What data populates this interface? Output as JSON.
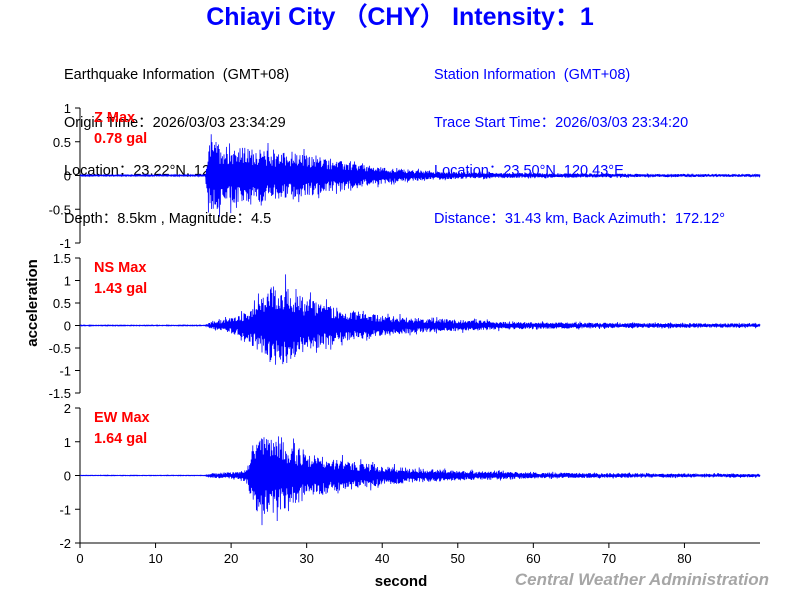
{
  "header": {
    "title": "Chiayi City （CHY） Intensity：1"
  },
  "earthquake_info": {
    "heading": "Earthquake Information  (GMT+08)",
    "origin_time": "Origin Time：2026/03/03 23:34:29",
    "location": "Location：23.22°N, 120.47°E",
    "depth_magnitude": "Depth：8.5km , Magnitude：4.5"
  },
  "station_info": {
    "heading": "Station Information  (GMT+08)",
    "trace_start": "Trace Start Time：2026/03/03 23:34:20",
    "location": "Location：23.50°N, 120.43°E",
    "distance": "Distance：31.43 km, Back Azimuth：172.12°"
  },
  "credit": "Central Weather Administration",
  "colors": {
    "trace": "#0000ff",
    "title": "#0000ff",
    "station_text": "#0000ff",
    "max_label": "#ff0000",
    "axis": "#000000",
    "credit": "#a6a6a6"
  },
  "chart_data": {
    "type": "line",
    "xlabel": "second",
    "ylabel": "acceleration",
    "xlim": [
      0,
      90
    ],
    "x_ticks": [
      0,
      10,
      20,
      30,
      40,
      50,
      60,
      70,
      80
    ],
    "grid": false,
    "panels": [
      {
        "component": "Z",
        "max_label": "Z Max",
        "max_value": "0.78 gal",
        "ylim": [
          -1,
          1
        ],
        "y_ticks": [
          1,
          0.5,
          0,
          -0.5,
          -1
        ],
        "y_tick_labels": [
          "1",
          "0.5",
          "0",
          "-0.5",
          "-1"
        ],
        "p_arrival": 16.8,
        "envelope": [
          [
            0,
            0.012
          ],
          [
            16.6,
            0.012
          ],
          [
            16.9,
            0.55
          ],
          [
            17.5,
            0.72
          ],
          [
            19,
            0.62
          ],
          [
            22,
            0.55
          ],
          [
            25,
            0.5
          ],
          [
            28,
            0.45
          ],
          [
            31,
            0.38
          ],
          [
            34,
            0.3
          ],
          [
            38,
            0.2
          ],
          [
            42,
            0.13
          ],
          [
            46,
            0.09
          ],
          [
            50,
            0.07
          ],
          [
            55,
            0.055
          ],
          [
            60,
            0.045
          ],
          [
            70,
            0.035
          ],
          [
            80,
            0.03
          ],
          [
            90,
            0.028
          ]
        ]
      },
      {
        "component": "NS",
        "max_label": "NS Max",
        "max_value": "1.43 gal",
        "ylim": [
          -1.5,
          1.5
        ],
        "y_ticks": [
          1.5,
          1,
          0.5,
          0,
          -0.5,
          -1,
          -1.5
        ],
        "y_tick_labels": [
          "1.5",
          "1",
          "0.5",
          "0",
          "-0.5",
          "-1",
          "-1.5"
        ],
        "p_arrival": 16.8,
        "envelope": [
          [
            0,
            0.012
          ],
          [
            16.6,
            0.012
          ],
          [
            17,
            0.08
          ],
          [
            19,
            0.18
          ],
          [
            21,
            0.3
          ],
          [
            22.5,
            0.5
          ],
          [
            23.5,
            0.75
          ],
          [
            25,
            1.1
          ],
          [
            26,
            1.2
          ],
          [
            27,
            1.3
          ],
          [
            28,
            1.0
          ],
          [
            30,
            0.8
          ],
          [
            32,
            0.65
          ],
          [
            34,
            0.55
          ],
          [
            36,
            0.45
          ],
          [
            40,
            0.3
          ],
          [
            45,
            0.22
          ],
          [
            50,
            0.17
          ],
          [
            55,
            0.13
          ],
          [
            60,
            0.1
          ],
          [
            70,
            0.08
          ],
          [
            80,
            0.07
          ],
          [
            90,
            0.06
          ]
        ]
      },
      {
        "component": "EW",
        "max_label": "EW Max",
        "max_value": "1.64 gal",
        "ylim": [
          -2,
          2
        ],
        "y_ticks": [
          2,
          1,
          0,
          -1,
          -2
        ],
        "y_tick_labels": [
          "2",
          "1",
          "0",
          "-1",
          "-2"
        ],
        "p_arrival": 16.8,
        "envelope": [
          [
            0,
            0.012
          ],
          [
            16.6,
            0.012
          ],
          [
            17,
            0.08
          ],
          [
            19,
            0.12
          ],
          [
            21,
            0.16
          ],
          [
            22,
            0.25
          ],
          [
            23,
            1.3
          ],
          [
            24,
            1.55
          ],
          [
            26,
            1.45
          ],
          [
            28,
            1.2
          ],
          [
            30,
            0.95
          ],
          [
            33,
            0.7
          ],
          [
            36,
            0.55
          ],
          [
            40,
            0.38
          ],
          [
            45,
            0.27
          ],
          [
            50,
            0.2
          ],
          [
            55,
            0.16
          ],
          [
            60,
            0.12
          ],
          [
            70,
            0.09
          ],
          [
            80,
            0.08
          ],
          [
            90,
            0.07
          ]
        ]
      }
    ]
  }
}
